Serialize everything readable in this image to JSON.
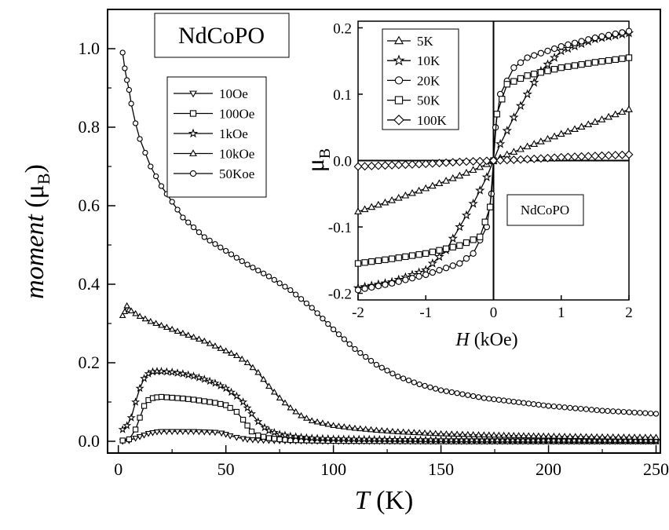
{
  "chart_data": [
    {
      "type": "line",
      "label": "NdCoPO",
      "xlabel_italic": "T",
      "xlabel_rest": " (K)",
      "ylabel_italic": "moment",
      "ylabel_rest": " (μ",
      "ylabel_sub": "B",
      "ylabel_close": ")",
      "xlim": [
        -5,
        252
      ],
      "ylim": [
        -0.03,
        1.1
      ],
      "xticks": [
        0,
        50,
        100,
        150,
        200,
        250
      ],
      "yticks": [
        0.0,
        0.2,
        0.4,
        0.6,
        0.8,
        1.0
      ],
      "xtick_labels": [
        "0",
        "50",
        "100",
        "150",
        "200",
        "250"
      ],
      "ytick_labels": [
        "0.0",
        "0.2",
        "0.4",
        "0.6",
        "0.8",
        "1.0"
      ],
      "legend_position": "left, below label",
      "series": [
        {
          "name": "10Oe",
          "marker": "triangle-down",
          "x": [
            2,
            5,
            8,
            10,
            12,
            14,
            16,
            18,
            20,
            25,
            30,
            35,
            40,
            45,
            48,
            50,
            52,
            55,
            58,
            60,
            65,
            70,
            80,
            100,
            150,
            200,
            250
          ],
          "y": [
            0.0,
            0.002,
            0.008,
            0.012,
            0.016,
            0.02,
            0.022,
            0.024,
            0.025,
            0.025,
            0.025,
            0.025,
            0.024,
            0.023,
            0.021,
            0.018,
            0.014,
            0.01,
            0.007,
            0.005,
            0.003,
            0.002,
            0.001,
            0.0,
            0.0,
            0.0,
            0.0
          ]
        },
        {
          "name": "100Oe",
          "marker": "square",
          "x": [
            2,
            5,
            8,
            10,
            12,
            14,
            16,
            18,
            20,
            25,
            30,
            35,
            40,
            45,
            50,
            52,
            55,
            58,
            60,
            62,
            65,
            70,
            75,
            80,
            90,
            100,
            150,
            200,
            250
          ],
          "y": [
            0.002,
            0.005,
            0.03,
            0.06,
            0.09,
            0.105,
            0.11,
            0.112,
            0.113,
            0.111,
            0.109,
            0.106,
            0.102,
            0.098,
            0.092,
            0.085,
            0.075,
            0.055,
            0.04,
            0.025,
            0.015,
            0.008,
            0.005,
            0.003,
            0.002,
            0.001,
            0.0,
            0.0,
            0.0
          ]
        },
        {
          "name": "1kOe",
          "marker": "star",
          "x": [
            2,
            4,
            6,
            8,
            10,
            12,
            14,
            16,
            18,
            20,
            25,
            30,
            35,
            40,
            45,
            50,
            55,
            58,
            60,
            62,
            65,
            68,
            70,
            75,
            80,
            90,
            100,
            150,
            200,
            250
          ],
          "y": [
            0.03,
            0.04,
            0.06,
            0.1,
            0.135,
            0.16,
            0.172,
            0.177,
            0.178,
            0.178,
            0.176,
            0.172,
            0.166,
            0.158,
            0.148,
            0.135,
            0.115,
            0.1,
            0.085,
            0.07,
            0.05,
            0.035,
            0.027,
            0.018,
            0.013,
            0.008,
            0.006,
            0.003,
            0.002,
            0.001
          ]
        },
        {
          "name": "10kOe",
          "marker": "triangle-up",
          "x": [
            2,
            3,
            4,
            5,
            6,
            8,
            10,
            15,
            20,
            30,
            40,
            50,
            55,
            60,
            65,
            70,
            75,
            80,
            85,
            90,
            100,
            110,
            120,
            130,
            150,
            170,
            200,
            225,
            250
          ],
          "y": [
            0.32,
            0.33,
            0.345,
            0.335,
            0.332,
            0.325,
            0.318,
            0.305,
            0.295,
            0.275,
            0.255,
            0.23,
            0.218,
            0.2,
            0.175,
            0.14,
            0.11,
            0.085,
            0.065,
            0.052,
            0.04,
            0.033,
            0.028,
            0.024,
            0.019,
            0.016,
            0.013,
            0.011,
            0.01
          ]
        },
        {
          "name": "50Koe",
          "marker": "circle",
          "x": [
            2,
            3,
            4,
            5,
            6,
            8,
            10,
            15,
            20,
            25,
            30,
            40,
            50,
            60,
            70,
            80,
            90,
            100,
            110,
            120,
            130,
            140,
            150,
            170,
            200,
            225,
            250
          ],
          "y": [
            0.99,
            0.95,
            0.92,
            0.895,
            0.86,
            0.81,
            0.77,
            0.7,
            0.65,
            0.61,
            0.57,
            0.52,
            0.485,
            0.45,
            0.42,
            0.385,
            0.34,
            0.285,
            0.235,
            0.195,
            0.165,
            0.145,
            0.13,
            0.11,
            0.09,
            0.078,
            0.07
          ]
        }
      ]
    },
    {
      "type": "line",
      "label": "NdCoPO",
      "xlabel_italic": "H",
      "xlabel_rest": " (kOe)",
      "ylabel_main": "μ",
      "ylabel_sub": "B",
      "xlim": [
        -2,
        2
      ],
      "ylim": [
        -0.21,
        0.21
      ],
      "xticks": [
        -2,
        -1,
        0,
        1,
        2
      ],
      "yticks": [
        -0.2,
        -0.1,
        0.0,
        0.1,
        0.2
      ],
      "xtick_labels": [
        "-2",
        "-1",
        "0",
        "1",
        "2"
      ],
      "ytick_labels": [
        "-0.2",
        "-0.1",
        "0.0",
        "0.1",
        "0.2"
      ],
      "legend_position": "top-left",
      "series": [
        {
          "name": "5K",
          "marker": "triangle-up",
          "x": [
            -2,
            -1.5,
            -1,
            -0.5,
            -0.2,
            0,
            0.2,
            0.5,
            1,
            1.5,
            2
          ],
          "y": [
            -0.077,
            -0.06,
            -0.042,
            -0.023,
            -0.01,
            -0.001,
            0.009,
            0.021,
            0.04,
            0.058,
            0.077
          ]
        },
        {
          "name": "10K",
          "marker": "star",
          "x": [
            -2,
            -1.5,
            -1,
            -0.7,
            -0.5,
            -0.3,
            -0.1,
            0,
            0.1,
            0.3,
            0.5,
            0.7,
            1,
            1.5,
            2
          ],
          "y": [
            -0.192,
            -0.183,
            -0.165,
            -0.135,
            -0.1,
            -0.065,
            -0.025,
            0,
            0.025,
            0.065,
            0.1,
            0.135,
            0.165,
            0.183,
            0.192
          ]
        },
        {
          "name": "20K",
          "marker": "circle",
          "x": [
            -2,
            -1.5,
            -1,
            -0.5,
            -0.3,
            -0.1,
            -0.03,
            0,
            0.03,
            0.1,
            0.3,
            0.5,
            1,
            1.5,
            2
          ],
          "y": [
            -0.195,
            -0.185,
            -0.172,
            -0.155,
            -0.14,
            -0.1,
            -0.05,
            0,
            0.05,
            0.1,
            0.14,
            0.155,
            0.172,
            0.185,
            0.195
          ]
        },
        {
          "name": "50K",
          "marker": "square",
          "x": [
            -2,
            -1.5,
            -1,
            -0.5,
            -0.2,
            -0.05,
            0,
            0.05,
            0.2,
            0.5,
            1,
            1.5,
            2
          ],
          "y": [
            -0.155,
            -0.148,
            -0.14,
            -0.128,
            -0.115,
            -0.07,
            0,
            0.07,
            0.115,
            0.128,
            0.14,
            0.148,
            0.155
          ]
        },
        {
          "name": "100K",
          "marker": "diamond",
          "x": [
            -2,
            -1.5,
            -1,
            -0.5,
            0,
            0.5,
            1,
            1.5,
            2
          ],
          "y": [
            -0.009,
            -0.007,
            -0.005,
            -0.002,
            0,
            0.002,
            0.005,
            0.007,
            0.009
          ]
        }
      ]
    }
  ]
}
